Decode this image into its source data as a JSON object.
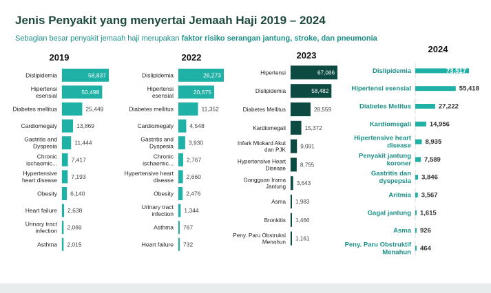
{
  "title": "Jenis Penyakit yang menyertai Jemaah Haji 2019 – 2024",
  "subtitle": {
    "text": "Sebagian besar penyakit jemaah haji merupakan",
    "emphasis": "faktor risiko serangan jantung, stroke, dan pneumonia"
  },
  "colors": {
    "title": "#1e4a3e",
    "subtitle": "#1a8f87",
    "bar_2019": "#1fb0a6",
    "bar_2022": "#1fb0a6",
    "bar_2023": "#0d4a42",
    "bar_2024": "#1fb0a6"
  },
  "chart_data": [
    {
      "type": "bar",
      "orientation": "horizontal",
      "title": "2019",
      "categories": [
        "Dislipidemia",
        "Hipertensi esensial",
        "Diabetes mellitus",
        "Cardiomegaly",
        "Gastritis and Dyspesia",
        "Chronic ischaemic...",
        "Hypertensive heart disease",
        "Obesity",
        "Heart failure",
        "Urinary tract infection",
        "Asthma"
      ],
      "values": [
        58837,
        50498,
        25449,
        13869,
        11444,
        7417,
        7193,
        6140,
        2638,
        2069,
        2015
      ],
      "value_labels": [
        "58,837",
        "50,498",
        "25,449",
        "13,869",
        "11,444",
        "7,417",
        "7,193",
        "6,140",
        "2,638",
        "2,069",
        "2,015"
      ]
    },
    {
      "type": "bar",
      "orientation": "horizontal",
      "title": "2022",
      "categories": [
        "Dislipidemia",
        "Hipertensi esensial",
        "Diabetes mellitus",
        "Cardiomegaly",
        "Gastritis and Dyspesia",
        "Chronic ischaemic...",
        "Hypertensive heart disease",
        "Obesity",
        "Urinary tract infection",
        "Asthma",
        "Heart failure"
      ],
      "values": [
        26273,
        20675,
        11352,
        4548,
        3930,
        2767,
        2660,
        2476,
        1344,
        767,
        732
      ],
      "value_labels": [
        "26,273",
        "20,675",
        "11,352",
        "4,548",
        "3,930",
        "2,767",
        "2,660",
        "2,476",
        "1,344",
        "767",
        "732"
      ]
    },
    {
      "type": "bar",
      "orientation": "horizontal",
      "title": "2023",
      "categories": [
        "Hipertensi",
        "Dislipidemia",
        "Diabetes Mellitus",
        "Kardiomegali",
        "Infark Miokard Akut dan PJK",
        "Hypertensive Heart Disease",
        "Gangguan Irama Jantung",
        "Asma",
        "Bronkitis",
        "Peny. Paru Obstruksi Menahun"
      ],
      "values": [
        67066,
        58482,
        28559,
        15372,
        9091,
        8755,
        3643,
        1983,
        1466,
        1161
      ],
      "value_labels": [
        "67,066",
        "58,482",
        "28,559",
        "15,372",
        "9,091",
        "8,755",
        "3,643",
        "1,983",
        "1,466",
        "1,161"
      ]
    },
    {
      "type": "bar",
      "orientation": "horizontal",
      "title": "2024",
      "categories": [
        "Dislipidemia",
        "Hipertensi esensial",
        "Diabetes Melitus",
        "Kardiomegali",
        "Hipertensive heart disease",
        "Penyakit jantung koroner",
        "Gastritis dan dyspepsia",
        "Aritmia",
        "Gagal jantung",
        "Asma",
        "Peny. Paru Obstruktif Menahun"
      ],
      "values": [
        73517,
        55418,
        27222,
        14956,
        8935,
        7589,
        3846,
        3567,
        1615,
        926,
        464
      ],
      "value_labels": [
        "73,517",
        "55,418",
        "27,222",
        "14,956",
        "8,935",
        "7,589",
        "3,846",
        "3,567",
        "1,615",
        "926",
        "464"
      ]
    }
  ]
}
